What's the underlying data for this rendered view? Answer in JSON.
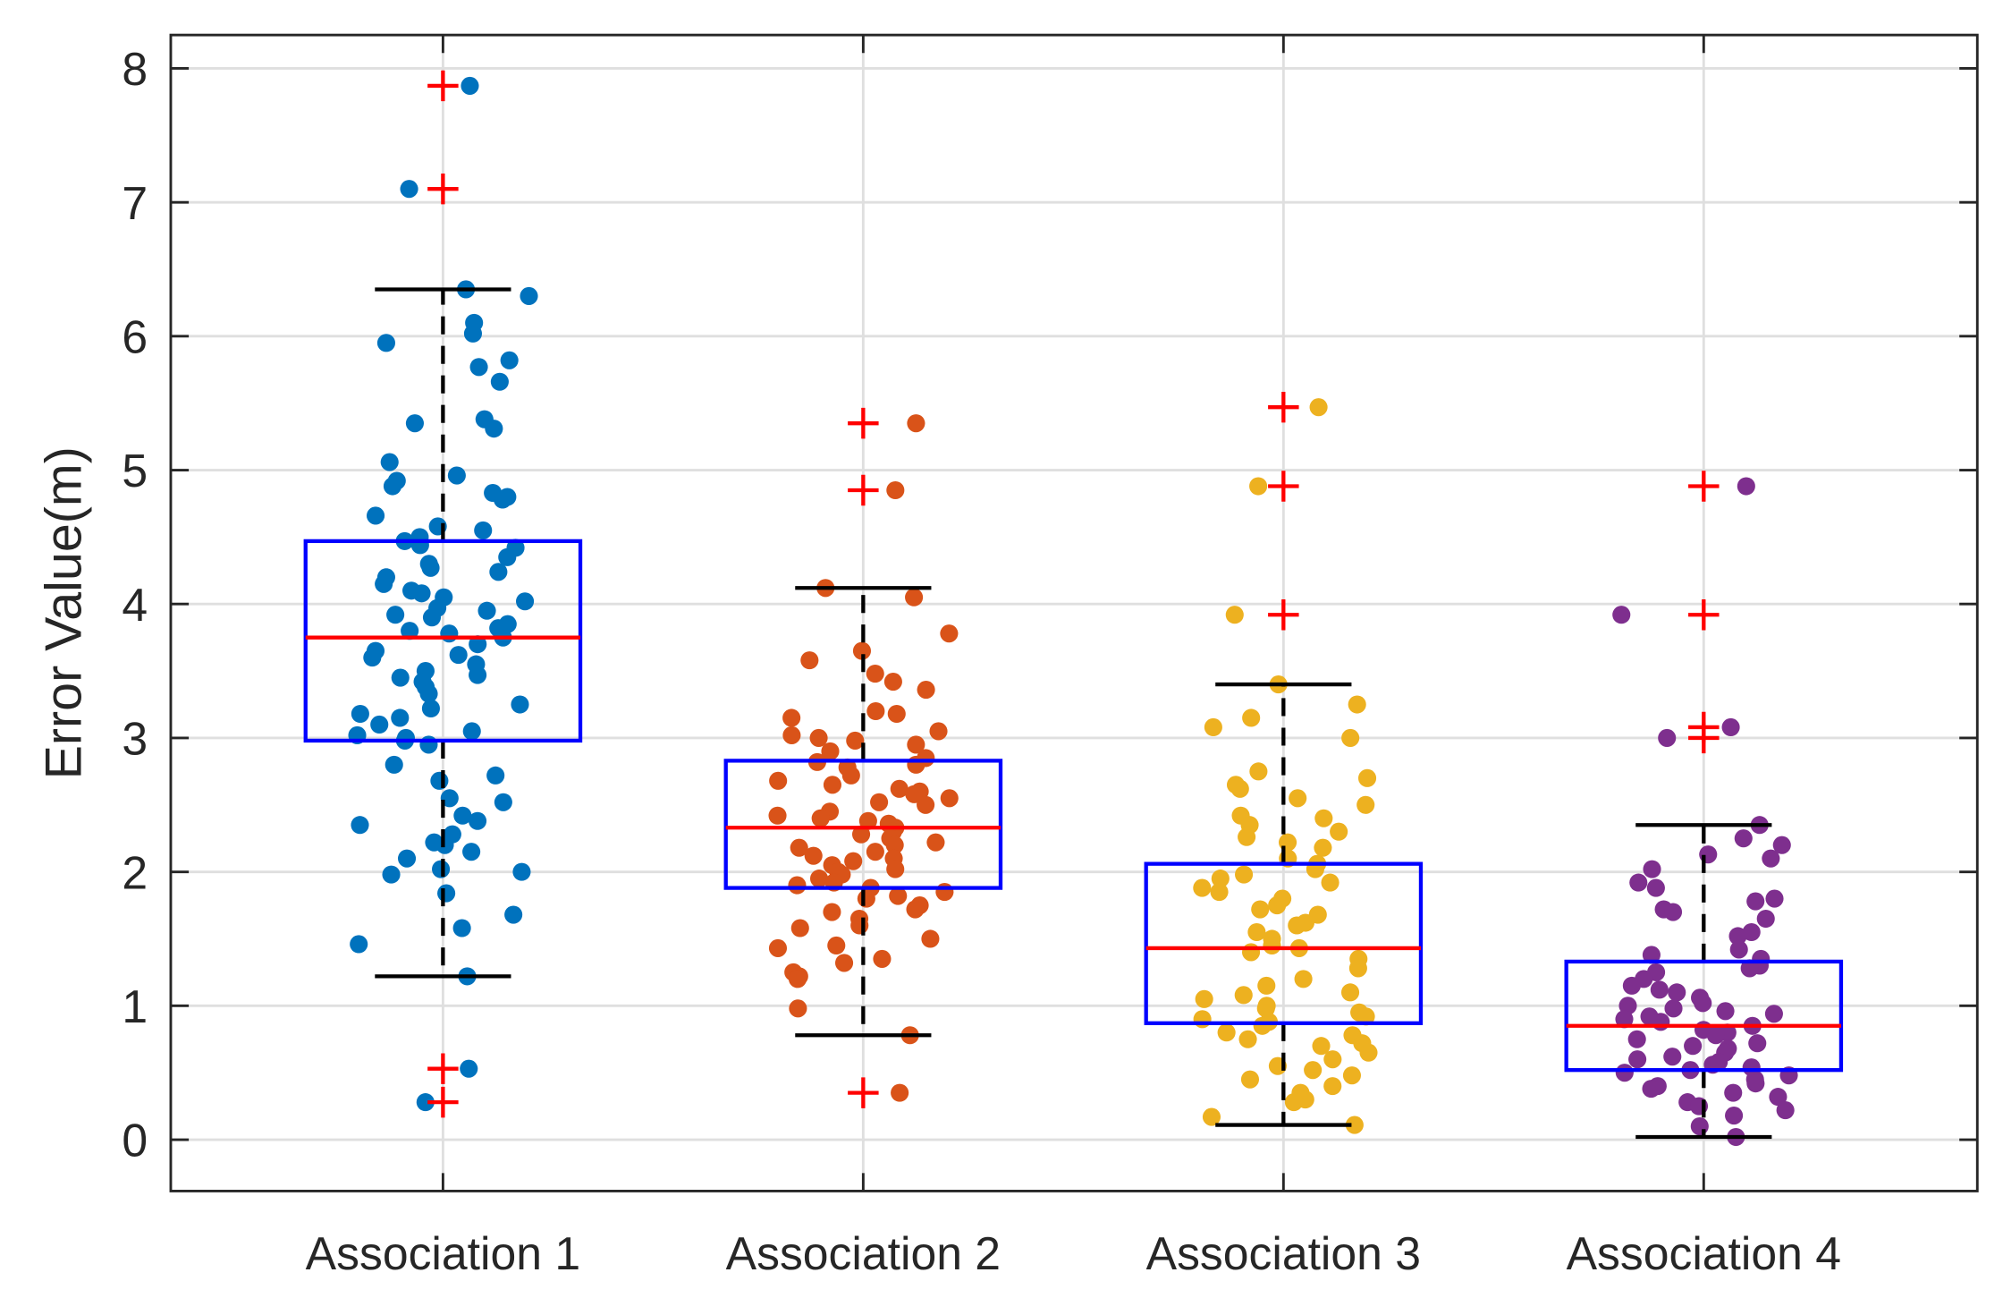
{
  "chart_data": {
    "type": "box",
    "title": "",
    "xlabel": "",
    "ylabel": "Error Value(m)",
    "ylim": [
      -0.4,
      8.25
    ],
    "yticks": [
      "0",
      "1",
      "2",
      "3",
      "4",
      "5",
      "6",
      "7",
      "8"
    ],
    "grid": true,
    "categories": [
      "Association 1",
      "Association 2",
      "Association 3",
      "Association 4"
    ],
    "colors": {
      "points": [
        "#0072BD",
        "#D95319",
        "#EDB120",
        "#7E2F8E"
      ],
      "box": "#0000FF",
      "median": "#FF0000",
      "whisker": "#000000",
      "outlier": "#FF0000"
    },
    "series": [
      {
        "name": "Association 1",
        "q1": 2.98,
        "median": 3.75,
        "q3": 4.47,
        "whisker_low": 1.22,
        "whisker_high": 6.35,
        "outliers": [
          7.87,
          7.1,
          0.53,
          0.28
        ],
        "points": [
          7.87,
          7.1,
          6.35,
          6.3,
          6.1,
          6.02,
          5.95,
          5.82,
          5.77,
          5.66,
          5.38,
          5.35,
          5.31,
          5.06,
          4.96,
          4.92,
          4.88,
          4.83,
          4.8,
          4.78,
          4.66,
          4.58,
          4.55,
          4.5,
          4.47,
          4.44,
          4.42,
          4.35,
          4.3,
          4.27,
          4.24,
          4.2,
          4.15,
          4.1,
          4.08,
          4.05,
          4.02,
          3.97,
          3.95,
          3.92,
          3.9,
          3.85,
          3.82,
          3.8,
          3.78,
          3.75,
          3.7,
          3.65,
          3.62,
          3.6,
          3.55,
          3.5,
          3.47,
          3.45,
          3.42,
          3.38,
          3.33,
          3.25,
          3.22,
          3.18,
          3.15,
          3.1,
          3.05,
          3.02,
          3.0,
          2.98,
          2.95,
          2.8,
          2.72,
          2.68,
          2.55,
          2.52,
          2.42,
          2.38,
          2.35,
          2.28,
          2.22,
          2.2,
          2.15,
          2.1,
          2.02,
          2.0,
          1.98,
          1.84,
          1.68,
          1.58,
          1.46,
          1.22,
          0.53,
          0.28
        ]
      },
      {
        "name": "Association 2",
        "q1": 1.88,
        "median": 2.33,
        "q3": 2.83,
        "whisker_low": 0.78,
        "whisker_high": 4.12,
        "outliers": [
          5.35,
          4.85,
          0.35
        ],
        "points": [
          5.35,
          4.85,
          4.12,
          4.05,
          3.78,
          3.65,
          3.58,
          3.48,
          3.42,
          3.36,
          3.2,
          3.18,
          3.15,
          3.05,
          3.02,
          3.0,
          2.98,
          2.95,
          2.9,
          2.85,
          2.82,
          2.8,
          2.78,
          2.72,
          2.68,
          2.65,
          2.62,
          2.6,
          2.58,
          2.55,
          2.52,
          2.5,
          2.45,
          2.42,
          2.4,
          2.38,
          2.36,
          2.33,
          2.3,
          2.28,
          2.25,
          2.22,
          2.2,
          2.18,
          2.15,
          2.12,
          2.1,
          2.08,
          2.05,
          2.02,
          2.0,
          1.98,
          1.95,
          1.92,
          1.9,
          1.88,
          1.85,
          1.82,
          1.8,
          1.75,
          1.72,
          1.7,
          1.65,
          1.6,
          1.58,
          1.5,
          1.45,
          1.43,
          1.35,
          1.32,
          1.25,
          1.22,
          1.2,
          0.98,
          0.78,
          0.35
        ]
      },
      {
        "name": "Association 3",
        "q1": 0.87,
        "median": 1.43,
        "q3": 2.06,
        "whisker_low": 0.11,
        "whisker_high": 3.4,
        "outliers": [
          5.47,
          4.88,
          3.92
        ],
        "points": [
          5.47,
          4.88,
          3.92,
          3.4,
          3.25,
          3.15,
          3.08,
          3.0,
          2.75,
          2.7,
          2.65,
          2.62,
          2.55,
          2.5,
          2.42,
          2.4,
          2.35,
          2.3,
          2.26,
          2.22,
          2.18,
          2.1,
          2.06,
          2.02,
          1.98,
          1.95,
          1.92,
          1.88,
          1.85,
          1.8,
          1.75,
          1.72,
          1.68,
          1.62,
          1.6,
          1.55,
          1.5,
          1.45,
          1.43,
          1.4,
          1.35,
          1.28,
          1.2,
          1.15,
          1.1,
          1.08,
          1.05,
          1.0,
          0.98,
          0.95,
          0.92,
          0.9,
          0.88,
          0.85,
          0.8,
          0.78,
          0.75,
          0.72,
          0.7,
          0.65,
          0.6,
          0.55,
          0.52,
          0.48,
          0.45,
          0.4,
          0.35,
          0.3,
          0.28,
          0.17,
          0.11
        ]
      },
      {
        "name": "Association 4",
        "q1": 0.52,
        "median": 0.85,
        "q3": 1.33,
        "whisker_low": 0.02,
        "whisker_high": 2.35,
        "outliers": [
          4.88,
          3.92,
          3.08,
          3.0
        ],
        "points": [
          4.88,
          3.92,
          3.08,
          3.0,
          2.35,
          2.25,
          2.2,
          2.13,
          2.1,
          2.02,
          1.92,
          1.88,
          1.8,
          1.78,
          1.72,
          1.7,
          1.65,
          1.55,
          1.52,
          1.42,
          1.38,
          1.35,
          1.3,
          1.28,
          1.25,
          1.2,
          1.15,
          1.12,
          1.1,
          1.06,
          1.02,
          1.0,
          0.98,
          0.96,
          0.94,
          0.92,
          0.9,
          0.88,
          0.85,
          0.82,
          0.8,
          0.78,
          0.75,
          0.72,
          0.7,
          0.68,
          0.65,
          0.62,
          0.6,
          0.58,
          0.56,
          0.54,
          0.52,
          0.5,
          0.48,
          0.45,
          0.42,
          0.4,
          0.38,
          0.35,
          0.32,
          0.28,
          0.25,
          0.22,
          0.18,
          0.1,
          0.02
        ]
      }
    ]
  }
}
